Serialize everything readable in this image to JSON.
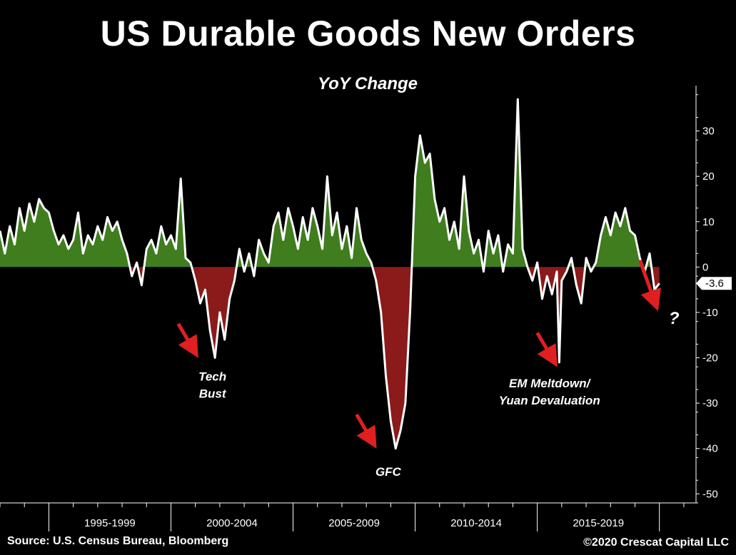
{
  "header": {
    "title": "US Durable Goods New Orders",
    "subtitle": "YoY Change"
  },
  "footer": {
    "source": "Source: U.S. Census Bureau, Bloomberg",
    "copyright": "©2020 Crescat Capital LLC"
  },
  "colors": {
    "background": "#000000",
    "positive_fill": "#3f7d1f",
    "negative_fill": "#8b1a1a",
    "line": "#ffffff",
    "arrow": "#e02020"
  },
  "chart_data": {
    "type": "area",
    "title": "US Durable Goods New Orders",
    "subtitle": "YoY Change",
    "xlabel": "",
    "ylabel": "",
    "ylim": [
      -52,
      40
    ],
    "yticks": [
      30,
      20,
      10,
      0,
      -10,
      -20,
      -30,
      -40,
      -50
    ],
    "xlim": [
      1993.0,
      2021.5
    ],
    "x_categories": [
      "1995-1999",
      "2000-2004",
      "2005-2009",
      "2010-2014",
      "2015-2019"
    ],
    "x_category_ranges": [
      [
        1995,
        2000
      ],
      [
        2000,
        2005
      ],
      [
        2005,
        2010
      ],
      [
        2010,
        2015
      ],
      [
        2015,
        2020
      ]
    ],
    "last_value_label": "-3.6",
    "series": [
      {
        "name": "US Durable Goods New Orders YoY %",
        "points": [
          [
            1993.0,
            8
          ],
          [
            1993.2,
            3
          ],
          [
            1993.4,
            9
          ],
          [
            1993.6,
            5
          ],
          [
            1993.8,
            13
          ],
          [
            1994.0,
            8
          ],
          [
            1994.2,
            14
          ],
          [
            1994.4,
            10
          ],
          [
            1994.6,
            15
          ],
          [
            1994.8,
            13
          ],
          [
            1995.0,
            12
          ],
          [
            1995.2,
            8
          ],
          [
            1995.4,
            5
          ],
          [
            1995.6,
            7
          ],
          [
            1995.8,
            4
          ],
          [
            1996.0,
            6
          ],
          [
            1996.2,
            12
          ],
          [
            1996.4,
            3
          ],
          [
            1996.6,
            7
          ],
          [
            1996.8,
            5
          ],
          [
            1997.0,
            9
          ],
          [
            1997.2,
            6
          ],
          [
            1997.4,
            11
          ],
          [
            1997.6,
            8
          ],
          [
            1997.8,
            10
          ],
          [
            1998.0,
            6
          ],
          [
            1998.2,
            3
          ],
          [
            1998.4,
            -2
          ],
          [
            1998.6,
            1
          ],
          [
            1998.8,
            -4
          ],
          [
            1999.0,
            4
          ],
          [
            1999.2,
            6
          ],
          [
            1999.4,
            3
          ],
          [
            1999.6,
            9
          ],
          [
            1999.8,
            5
          ],
          [
            2000.0,
            7
          ],
          [
            2000.2,
            4
          ],
          [
            2000.4,
            19.5
          ],
          [
            2000.6,
            2
          ],
          [
            2000.8,
            1
          ],
          [
            2001.0,
            -3
          ],
          [
            2001.2,
            -8
          ],
          [
            2001.4,
            -5
          ],
          [
            2001.6,
            -14
          ],
          [
            2001.8,
            -20
          ],
          [
            2002.0,
            -10
          ],
          [
            2002.2,
            -16
          ],
          [
            2002.4,
            -7
          ],
          [
            2002.6,
            -3
          ],
          [
            2002.8,
            4
          ],
          [
            2003.0,
            -1
          ],
          [
            2003.2,
            3
          ],
          [
            2003.4,
            -2
          ],
          [
            2003.6,
            6
          ],
          [
            2003.8,
            3
          ],
          [
            2004.0,
            1
          ],
          [
            2004.2,
            9
          ],
          [
            2004.4,
            12
          ],
          [
            2004.6,
            6
          ],
          [
            2004.8,
            13
          ],
          [
            2005.0,
            9
          ],
          [
            2005.2,
            4
          ],
          [
            2005.4,
            11
          ],
          [
            2005.6,
            6
          ],
          [
            2005.8,
            13
          ],
          [
            2006.0,
            9
          ],
          [
            2006.2,
            4
          ],
          [
            2006.4,
            20
          ],
          [
            2006.6,
            7
          ],
          [
            2006.8,
            12
          ],
          [
            2007.0,
            4
          ],
          [
            2007.2,
            9
          ],
          [
            2007.4,
            2
          ],
          [
            2007.6,
            13
          ],
          [
            2007.8,
            6
          ],
          [
            2008.0,
            3
          ],
          [
            2008.2,
            1
          ],
          [
            2008.4,
            -3
          ],
          [
            2008.6,
            -10
          ],
          [
            2008.8,
            -24
          ],
          [
            2009.0,
            -34
          ],
          [
            2009.2,
            -40
          ],
          [
            2009.4,
            -36
          ],
          [
            2009.6,
            -30
          ],
          [
            2009.8,
            -9
          ],
          [
            2010.0,
            20
          ],
          [
            2010.2,
            29
          ],
          [
            2010.4,
            23
          ],
          [
            2010.6,
            25
          ],
          [
            2010.8,
            15
          ],
          [
            2011.0,
            10
          ],
          [
            2011.2,
            13
          ],
          [
            2011.4,
            6
          ],
          [
            2011.6,
            10
          ],
          [
            2011.8,
            4
          ],
          [
            2012.0,
            20
          ],
          [
            2012.2,
            8
          ],
          [
            2012.4,
            3
          ],
          [
            2012.6,
            6
          ],
          [
            2012.8,
            -1
          ],
          [
            2013.0,
            8
          ],
          [
            2013.2,
            3
          ],
          [
            2013.4,
            7
          ],
          [
            2013.6,
            -1
          ],
          [
            2013.8,
            5
          ],
          [
            2014.0,
            3
          ],
          [
            2014.2,
            37
          ],
          [
            2014.4,
            4
          ],
          [
            2014.6,
            0
          ],
          [
            2014.8,
            -3
          ],
          [
            2015.0,
            1
          ],
          [
            2015.2,
            -7
          ],
          [
            2015.4,
            -2
          ],
          [
            2015.6,
            -6
          ],
          [
            2015.8,
            -1
          ],
          [
            2015.9,
            -21
          ],
          [
            2016.0,
            -3
          ],
          [
            2016.2,
            -1
          ],
          [
            2016.4,
            2
          ],
          [
            2016.6,
            -4
          ],
          [
            2016.8,
            -8
          ],
          [
            2017.0,
            2
          ],
          [
            2017.2,
            -1
          ],
          [
            2017.4,
            1
          ],
          [
            2017.6,
            7
          ],
          [
            2017.8,
            11
          ],
          [
            2018.0,
            7
          ],
          [
            2018.2,
            12
          ],
          [
            2018.4,
            9
          ],
          [
            2018.6,
            13
          ],
          [
            2018.8,
            8
          ],
          [
            2019.0,
            7
          ],
          [
            2019.2,
            2
          ],
          [
            2019.4,
            -1
          ],
          [
            2019.6,
            3
          ],
          [
            2019.8,
            -5
          ],
          [
            2020.0,
            -3.6
          ]
        ]
      }
    ],
    "annotations": [
      {
        "text_lines": [
          "Tech",
          "Bust"
        ],
        "x": 2001.7,
        "y": -25
      },
      {
        "text_lines": [
          "GFC"
        ],
        "x": 2008.9,
        "y": -46
      },
      {
        "text_lines": [
          "EM Meltdown/",
          "Yuan Devaluation"
        ],
        "x": 2015.5,
        "y": -26.5
      },
      {
        "text_lines": [
          "?"
        ],
        "x": 2020.6,
        "y": -12.5
      }
    ],
    "arrows": [
      {
        "x1": 2000.3,
        "y1": -12.5,
        "x2": 2000.9,
        "y2": -18
      },
      {
        "x1": 2007.6,
        "y1": -32.5,
        "x2": 2008.2,
        "y2": -38
      },
      {
        "x1": 2015.0,
        "y1": -14.5,
        "x2": 2015.6,
        "y2": -20
      },
      {
        "x1": 2019.2,
        "y1": 1.5,
        "x2": 2019.8,
        "y2": -7.5
      }
    ]
  }
}
